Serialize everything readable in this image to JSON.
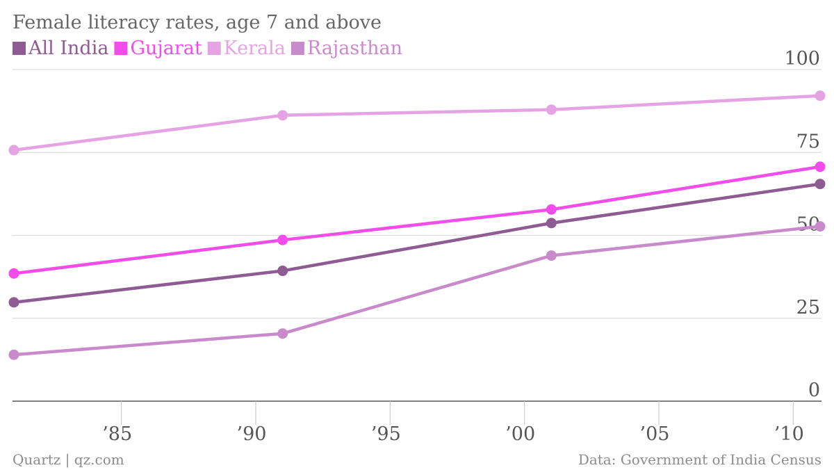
{
  "chart_data": {
    "type": "line",
    "title": "Female literacy rates, age 7 and above",
    "x": [
      1981,
      1991,
      2001,
      2011
    ],
    "xticks": [
      1985,
      1990,
      1995,
      2000,
      2005,
      2010
    ],
    "xtick_labels": [
      "’85",
      "’90",
      "’95",
      "’00",
      "’05",
      "’10"
    ],
    "xlim": [
      1981,
      2011
    ],
    "yticks": [
      0,
      25,
      50,
      75,
      100
    ],
    "ytick_labels": [
      "0",
      "25",
      "50",
      "75",
      "100"
    ],
    "ylim": [
      0,
      100
    ],
    "grid": true,
    "legend_position": "top-left",
    "series": [
      {
        "name": "All India",
        "color": "#8e5b93",
        "values": [
          29.8,
          39.3,
          53.7,
          65.5
        ]
      },
      {
        "name": "Gujarat",
        "color": "#f24cea",
        "values": [
          38.5,
          48.6,
          57.8,
          70.7
        ]
      },
      {
        "name": "Kerala",
        "color": "#e6a3e3",
        "values": [
          75.7,
          86.2,
          87.9,
          92.1
        ]
      },
      {
        "name": "Rajasthan",
        "color": "#c98acb",
        "values": [
          14.0,
          20.4,
          43.9,
          52.7
        ]
      }
    ],
    "footer_left": "Quartz | qz.com",
    "footer_right": "Data: Government of India Census"
  }
}
